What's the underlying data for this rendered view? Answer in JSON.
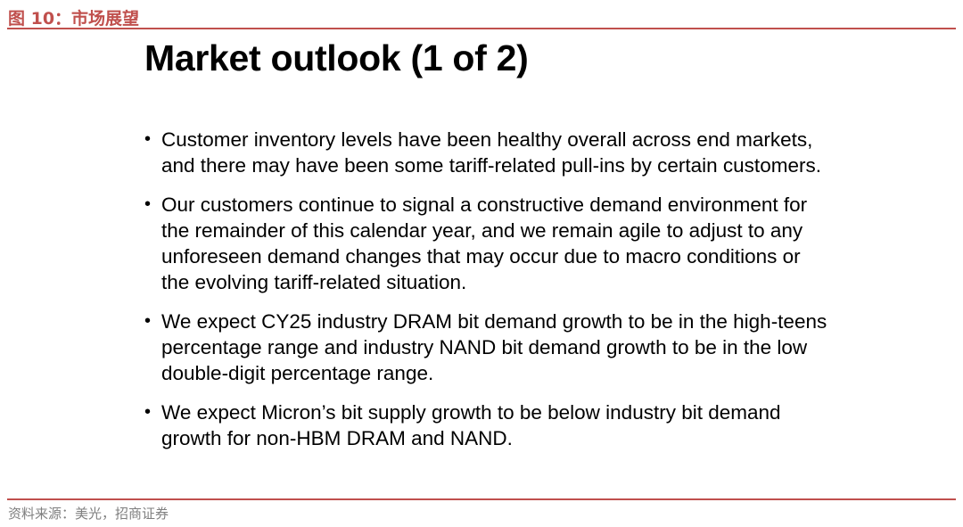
{
  "header": {
    "figure_caption": "图 10：市场展望"
  },
  "slide": {
    "title": "Market outlook (1 of 2)",
    "bullet_symbol": "•",
    "bullets": [
      "Customer inventory levels have been healthy overall across end markets, and there may have been some tariff-related pull-ins by certain customers.",
      "Our customers continue to signal a constructive demand environment for the remainder of this calendar year, and we remain agile to adjust to any unforeseen demand changes that may occur due to macro conditions or the evolving tariff-related situation.",
      "We expect CY25 industry DRAM bit demand growth to be in the high-teens percentage range and industry NAND bit demand growth to be in the low double-digit percentage range.",
      "We expect Micron’s bit supply growth to be below industry bit demand growth for non-HBM DRAM and NAND."
    ]
  },
  "footer": {
    "source": "资料来源：美光，招商证券"
  },
  "colors": {
    "accent": "#c0504d",
    "source_text": "#7f7f7f"
  }
}
